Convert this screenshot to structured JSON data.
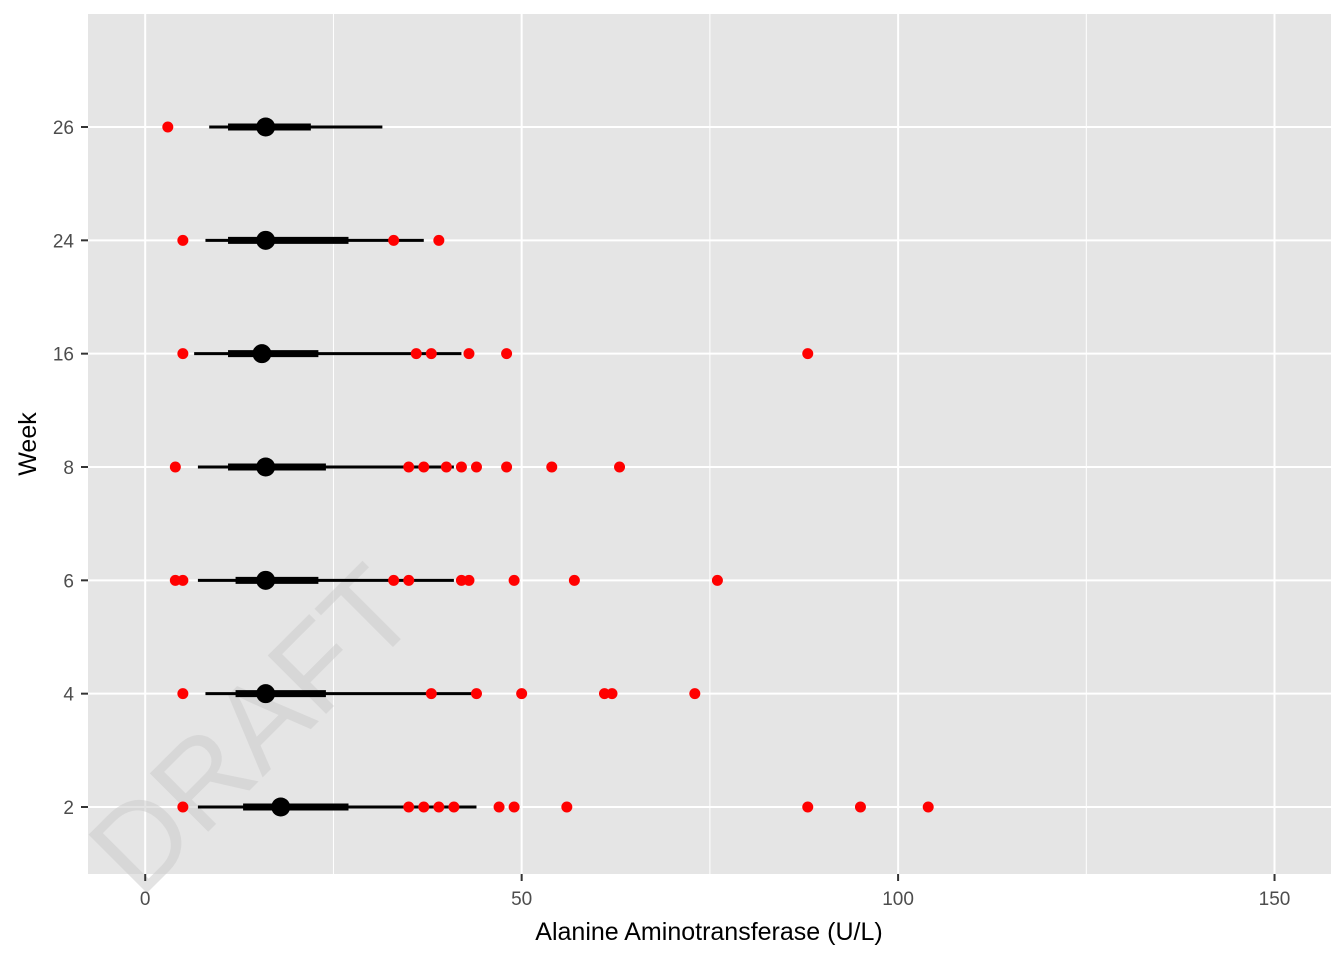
{
  "chart_data": {
    "type": "scatter",
    "title": "",
    "xlabel": "Alanine Aminotransferase (U/L)",
    "ylabel": "Week",
    "xlim": [
      -7.6,
      157.5
    ],
    "x_ticks": [
      0,
      50,
      100,
      150
    ],
    "x_tick_labels": [
      "0",
      "50",
      "100",
      "150"
    ],
    "categories": [
      "2",
      "4",
      "6",
      "8",
      "16",
      "24",
      "26"
    ],
    "grid": true,
    "background": "#E5E5E5",
    "grid_color": "#FFFFFF",
    "summary_color": "#000000",
    "outlier_color": "#FF0000",
    "watermark": "DRAFT",
    "summaries": [
      {
        "week": "2",
        "median": 18,
        "inner": [
          13,
          27
        ],
        "outer": [
          7,
          44
        ]
      },
      {
        "week": "4",
        "median": 16,
        "inner": [
          12,
          24
        ],
        "outer": [
          8,
          44
        ]
      },
      {
        "week": "6",
        "median": 16,
        "inner": [
          12,
          23
        ],
        "outer": [
          7,
          41
        ]
      },
      {
        "week": "8",
        "median": 16,
        "inner": [
          11,
          24
        ],
        "outer": [
          7,
          41
        ]
      },
      {
        "week": "16",
        "median": 15.5,
        "inner": [
          11,
          23
        ],
        "outer": [
          6.5,
          42
        ]
      },
      {
        "week": "24",
        "median": 16,
        "inner": [
          11,
          27
        ],
        "outer": [
          8,
          37
        ]
      },
      {
        "week": "26",
        "median": 16,
        "inner": [
          11,
          22
        ],
        "outer": [
          8.5,
          31.5
        ]
      }
    ],
    "outliers": [
      {
        "week": "2",
        "values": [
          5,
          35,
          37,
          39,
          41,
          47,
          49,
          56,
          88,
          95,
          104
        ]
      },
      {
        "week": "4",
        "values": [
          5,
          38,
          44,
          50,
          61,
          62,
          73
        ]
      },
      {
        "week": "6",
        "values": [
          4,
          5,
          33,
          35,
          42,
          43,
          49,
          57,
          76
        ]
      },
      {
        "week": "8",
        "values": [
          4,
          35,
          37,
          40,
          42,
          44,
          48,
          54,
          63
        ]
      },
      {
        "week": "16",
        "values": [
          5,
          36,
          38,
          43,
          48,
          88
        ]
      },
      {
        "week": "24",
        "values": [
          5,
          33,
          39
        ]
      },
      {
        "week": "26",
        "values": [
          3
        ]
      }
    ]
  }
}
